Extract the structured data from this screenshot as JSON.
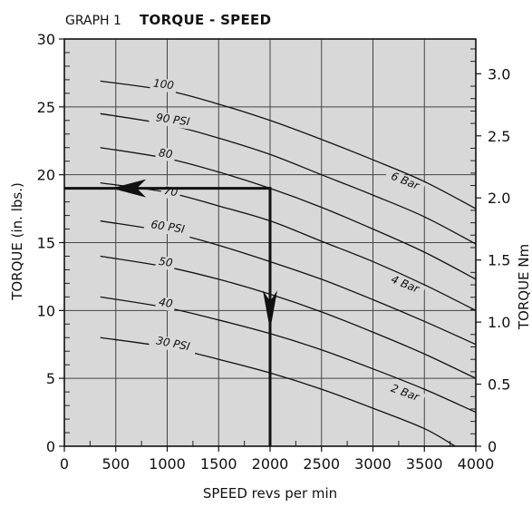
{
  "chart_data": {
    "type": "line",
    "title_prefix": "GRAPH 1",
    "title": "TORQUE - SPEED",
    "xlabel": "SPEED revs per min",
    "ylabel": "TORQUE (in. lbs.)",
    "y2label": "TORQUE Nm",
    "xlim": [
      0,
      4000
    ],
    "ylim": [
      0,
      30
    ],
    "y2lim": [
      0,
      3.28
    ],
    "x_ticks": [
      0,
      500,
      1000,
      1500,
      2000,
      2500,
      3000,
      3500,
      4000
    ],
    "y_ticks": [
      0,
      5,
      10,
      15,
      20,
      25,
      30
    ],
    "y2_ticks": [
      "0",
      "0.5",
      "1.0",
      "1.5",
      "2.0",
      "2.5",
      "3.0"
    ],
    "y2_tick_values": [
      0,
      0.5,
      1.0,
      1.5,
      2.0,
      2.5,
      3.0
    ],
    "grid": true,
    "background": "#d8d8d8",
    "series": [
      {
        "label": "100",
        "x": [
          350,
          1000,
          1500,
          2000,
          2500,
          3000,
          3500,
          4000
        ],
        "y": [
          26.9,
          26.2,
          25.2,
          24.0,
          22.6,
          21.1,
          19.5,
          17.5
        ]
      },
      {
        "label": "90 PSI",
        "x": [
          350,
          1000,
          1500,
          2000,
          2500,
          3000,
          3500,
          4000
        ],
        "y": [
          24.5,
          23.7,
          22.7,
          21.5,
          20.0,
          18.5,
          16.9,
          14.9
        ]
      },
      {
        "label": "80",
        "x": [
          350,
          1000,
          1500,
          2000,
          2500,
          3000,
          3500,
          4000
        ],
        "y": [
          22.0,
          21.2,
          20.2,
          19.0,
          17.6,
          16.0,
          14.3,
          12.3
        ]
      },
      {
        "label": "70",
        "x": [
          350,
          1000,
          1500,
          2000,
          2500,
          3000,
          3500,
          4000
        ],
        "y": [
          19.4,
          18.7,
          17.7,
          16.6,
          15.1,
          13.6,
          11.9,
          10.0
        ]
      },
      {
        "label": "60 PSI",
        "x": [
          350,
          1000,
          1500,
          2000,
          2500,
          3000,
          3500,
          4000
        ],
        "y": [
          16.6,
          15.8,
          14.8,
          13.6,
          12.3,
          10.8,
          9.2,
          7.5
        ]
      },
      {
        "label": "50",
        "x": [
          350,
          1000,
          1500,
          2000,
          2500,
          3000,
          3500,
          4000
        ],
        "y": [
          14.0,
          13.2,
          12.3,
          11.2,
          9.9,
          8.4,
          6.8,
          5.0
        ]
      },
      {
        "label": "40",
        "x": [
          350,
          1000,
          1500,
          2000,
          2500,
          3000,
          3500,
          4000
        ],
        "y": [
          11.0,
          10.2,
          9.3,
          8.3,
          7.1,
          5.7,
          4.2,
          2.5
        ]
      },
      {
        "label": "30 PSI",
        "x": [
          350,
          1000,
          1500,
          2000,
          2500,
          3000,
          3500,
          3800
        ],
        "y": [
          8.0,
          7.3,
          6.4,
          5.4,
          4.2,
          2.8,
          1.3,
          0.0
        ]
      }
    ],
    "curve_labels": [
      {
        "text": "100",
        "x": 960,
        "y": 26.4,
        "angle": 7
      },
      {
        "text": "90 PSI",
        "x": 1050,
        "y": 23.8,
        "angle": 8
      },
      {
        "text": "80",
        "x": 980,
        "y": 21.3,
        "angle": 8
      },
      {
        "text": "70",
        "x": 1030,
        "y": 18.5,
        "angle": 9
      },
      {
        "text": "60 PSI",
        "x": 1000,
        "y": 15.9,
        "angle": 9
      },
      {
        "text": "50",
        "x": 980,
        "y": 13.3,
        "angle": 9
      },
      {
        "text": "40",
        "x": 980,
        "y": 10.3,
        "angle": 10
      },
      {
        "text": "30 PSI",
        "x": 1050,
        "y": 7.3,
        "angle": 11
      }
    ],
    "bar_labels": [
      {
        "text": "6 Bar",
        "x": 3300,
        "y": 19.3,
        "angle": 22
      },
      {
        "text": "4 Bar",
        "x": 3300,
        "y": 11.7,
        "angle": 22
      },
      {
        "text": "2 Bar",
        "x": 3300,
        "y": 3.7,
        "angle": 20
      }
    ],
    "example_reading": {
      "speed": 2000,
      "torque": 19
    }
  }
}
